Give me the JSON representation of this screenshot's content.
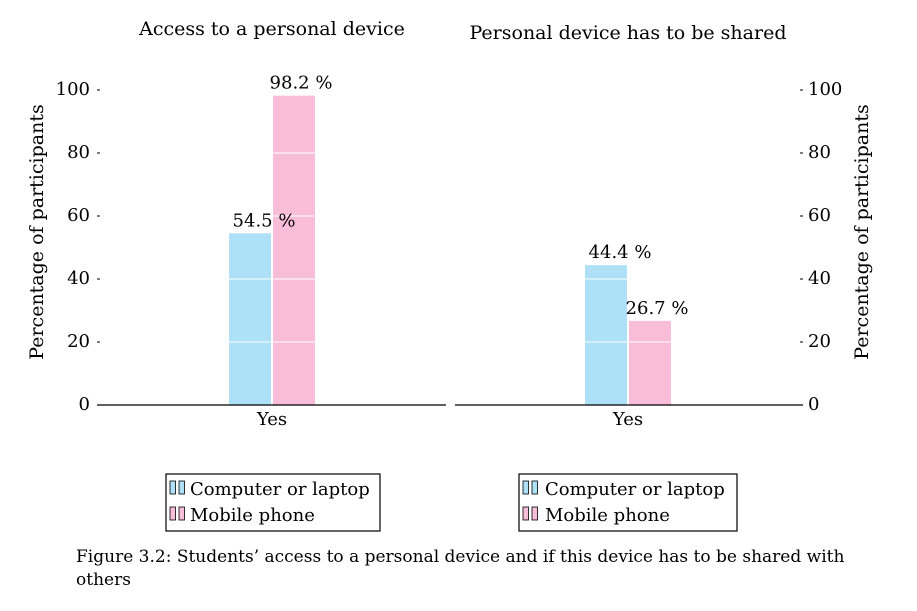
{
  "chart_data": [
    {
      "type": "bar",
      "title": "Access to a personal device",
      "categories": [
        "Yes"
      ],
      "series": [
        {
          "name": "Computer or laptop",
          "values": [
            54.5
          ],
          "labels": [
            "54.5 %"
          ]
        },
        {
          "name": "Mobile phone",
          "values": [
            98.2
          ],
          "labels": [
            "98.2 %"
          ]
        }
      ],
      "ylabel": "Percentage of participants",
      "xlabel": "",
      "ylim": [
        0,
        100
      ],
      "yticks": [
        "0",
        "20",
        "40",
        "60",
        "80",
        "100"
      ],
      "y_axis_side": "left",
      "grid": false,
      "legend": [
        "Computer or laptop",
        "Mobile phone"
      ],
      "legend_position": "below"
    },
    {
      "type": "bar",
      "title": "Personal device has to be shared",
      "categories": [
        "Yes"
      ],
      "series": [
        {
          "name": "Computer or laptop",
          "values": [
            44.4
          ],
          "labels": [
            "44.4 %"
          ]
        },
        {
          "name": "Mobile phone",
          "values": [
            26.7
          ],
          "labels": [
            "26.7 %"
          ]
        }
      ],
      "ylabel": "Percentage of participants",
      "xlabel": "",
      "ylim": [
        0,
        100
      ],
      "yticks": [
        "0",
        "20",
        "40",
        "60",
        "80",
        "100"
      ],
      "y_axis_side": "right",
      "grid": false,
      "legend": [
        "Computer or laptop",
        "Mobile phone"
      ],
      "legend_position": "below"
    }
  ],
  "colors": {
    "computer": "#aee0f7",
    "mobile": "#f8bdd9"
  },
  "caption": "Figure 3.2: Students’ access to a personal device and if this device has to be shared with others"
}
